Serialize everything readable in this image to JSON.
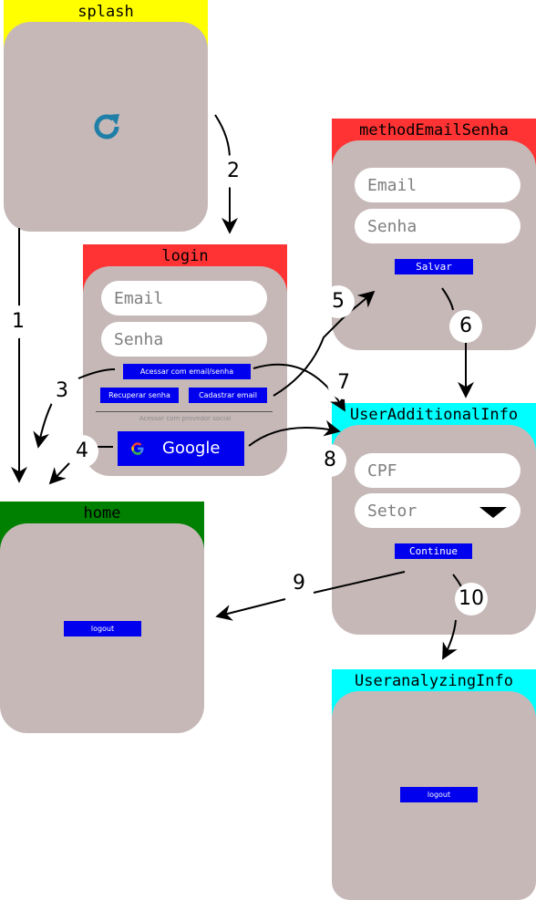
{
  "screens": {
    "splash": {
      "title": "splash",
      "header_color": "#ffff00",
      "icon": "refresh-icon"
    },
    "login": {
      "title": "login",
      "header_color": "#ff3333",
      "email_placeholder": "Email",
      "senha_placeholder": "Senha",
      "access_button": "Acessar com email/senha",
      "recover_button": "Recuperar senha",
      "register_button": "Cadastrar email",
      "social_label": "Acessar com provedor social",
      "google_button": "Google"
    },
    "methodEmailSenha": {
      "title": "methodEmailSenha",
      "header_color": "#ff3333",
      "email_placeholder": "Email",
      "senha_placeholder": "Senha",
      "save_button": "Salvar"
    },
    "home": {
      "title": "home",
      "header_color": "#008000",
      "logout_button": "logout"
    },
    "userAdditionalInfo": {
      "title": "UserAdditionalInfo",
      "header_color": "#00ffff",
      "cpf_placeholder": "CPF",
      "setor_placeholder": "Setor",
      "continue_button": "Continue"
    },
    "userAnalyzingInfo": {
      "title": "UseranalyzingInfo",
      "header_color": "#00ffff",
      "logout_button": "logout"
    }
  },
  "transitions": [
    {
      "label": "1",
      "from": "splash",
      "to": "home"
    },
    {
      "label": "2",
      "from": "splash",
      "to": "login"
    },
    {
      "label": "3",
      "from": "login",
      "to": "home"
    },
    {
      "label": "4",
      "from": "login",
      "to": "home"
    },
    {
      "label": "5",
      "from": "login",
      "to": "methodEmailSenha"
    },
    {
      "label": "6",
      "from": "methodEmailSenha",
      "to": "userAdditionalInfo"
    },
    {
      "label": "7",
      "from": "login",
      "to": "userAdditionalInfo"
    },
    {
      "label": "8",
      "from": "login",
      "to": "userAdditionalInfo"
    },
    {
      "label": "9",
      "from": "userAdditionalInfo",
      "to": "home"
    },
    {
      "label": "10",
      "from": "userAdditionalInfo",
      "to": "userAnalyzingInfo"
    }
  ],
  "colors": {
    "card": "#c7b8b8",
    "button": "#0000ee",
    "field": "#ffffff",
    "placeholder": "#7f7f7f",
    "icon": "#1f7fa6"
  }
}
